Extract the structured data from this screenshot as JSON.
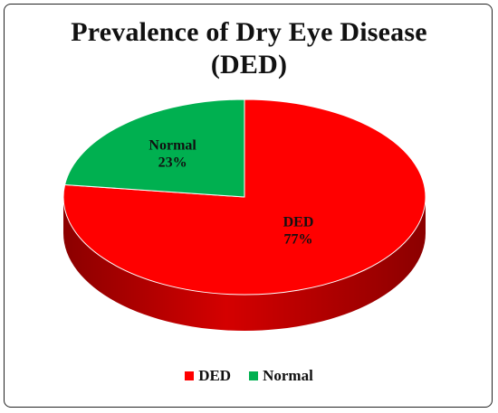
{
  "chart_data": {
    "type": "pie",
    "title_lines": [
      "Prevalence of Dry Eye Disease",
      "(DED)"
    ],
    "series": [
      {
        "name": "",
        "slices": [
          {
            "label": "DED",
            "value": 77,
            "value_label": "77%",
            "color": "#ff0000",
            "side_color": "#8b0000"
          },
          {
            "label": "Normal",
            "value": 23,
            "value_label": "23%",
            "color": "#00b050",
            "side_color": "#006b30"
          }
        ]
      }
    ],
    "legend": {
      "position": "bottom",
      "entries": [
        {
          "label": "DED",
          "color": "#ff0000"
        },
        {
          "label": "Normal",
          "color": "#00b050"
        }
      ]
    },
    "style": "3d"
  }
}
